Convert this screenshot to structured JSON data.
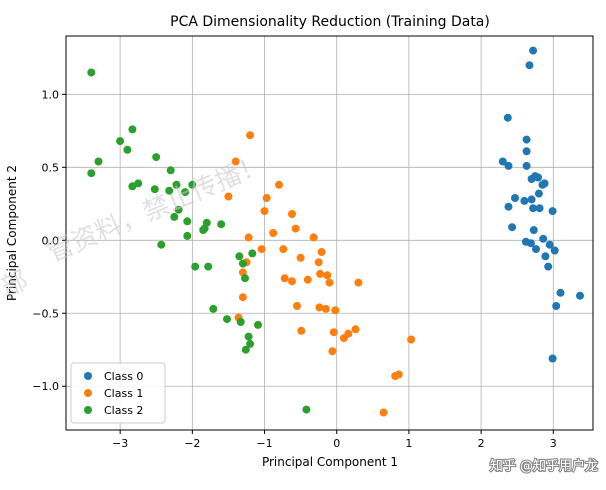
{
  "chart_data": {
    "type": "scatter",
    "title": "PCA Dimensionality Reduction (Training Data)",
    "xlabel": "Principal Component 1",
    "ylabel": "Principal Component 2",
    "xlim": [
      -3.75,
      3.55
    ],
    "ylim": [
      -1.3,
      1.4
    ],
    "xticks": [
      -3,
      -2,
      -1,
      0,
      1,
      2,
      3
    ],
    "yticks": [
      -1.0,
      -0.5,
      0.0,
      0.5,
      1.0
    ],
    "xtick_labels": [
      "−3",
      "−2",
      "−1",
      "0",
      "1",
      "2",
      "3"
    ],
    "ytick_labels": [
      "−1.0",
      "−0.5",
      "0.0",
      "0.5",
      "1.0"
    ],
    "grid": true,
    "legend_position": "lower-left",
    "series": [
      {
        "name": "Class 0",
        "color": "#1f77b4",
        "points": [
          [
            2.72,
            1.3
          ],
          [
            2.67,
            1.2
          ],
          [
            2.37,
            0.84
          ],
          [
            2.63,
            0.69
          ],
          [
            2.63,
            0.61
          ],
          [
            2.3,
            0.54
          ],
          [
            2.38,
            0.51
          ],
          [
            2.63,
            0.51
          ],
          [
            2.75,
            0.44
          ],
          [
            2.79,
            0.43
          ],
          [
            2.7,
            0.42
          ],
          [
            2.88,
            0.39
          ],
          [
            2.85,
            0.38
          ],
          [
            2.8,
            0.32
          ],
          [
            2.47,
            0.29
          ],
          [
            2.7,
            0.28
          ],
          [
            2.6,
            0.27
          ],
          [
            2.38,
            0.23
          ],
          [
            2.72,
            0.22
          ],
          [
            2.81,
            0.22
          ],
          [
            2.99,
            0.2
          ],
          [
            2.43,
            0.09
          ],
          [
            2.73,
            0.07
          ],
          [
            2.86,
            0.01
          ],
          [
            2.62,
            -0.01
          ],
          [
            2.69,
            -0.02
          ],
          [
            2.95,
            -0.03
          ],
          [
            2.76,
            -0.06
          ],
          [
            3.02,
            -0.07
          ],
          [
            2.89,
            -0.11
          ],
          [
            2.93,
            -0.18
          ],
          [
            3.1,
            -0.36
          ],
          [
            3.37,
            -0.38
          ],
          [
            3.04,
            -0.45
          ],
          [
            2.99,
            -0.81
          ]
        ]
      },
      {
        "name": "Class 1",
        "color": "#ff7f0e",
        "points": [
          [
            -1.2,
            0.72
          ],
          [
            -1.4,
            0.54
          ],
          [
            -0.8,
            0.38
          ],
          [
            -1.5,
            0.3
          ],
          [
            -0.97,
            0.29
          ],
          [
            -1.0,
            0.2
          ],
          [
            -0.62,
            0.18
          ],
          [
            -0.57,
            0.08
          ],
          [
            -0.88,
            0.05
          ],
          [
            -1.22,
            0.02
          ],
          [
            -0.32,
            0.02
          ],
          [
            -1.04,
            -0.06
          ],
          [
            -0.74,
            -0.06
          ],
          [
            -0.21,
            -0.08
          ],
          [
            -0.5,
            -0.12
          ],
          [
            -1.25,
            -0.15
          ],
          [
            -0.25,
            -0.15
          ],
          [
            -1.3,
            -0.22
          ],
          [
            -0.23,
            -0.23
          ],
          [
            -0.13,
            -0.24
          ],
          [
            -0.72,
            -0.26
          ],
          [
            -0.4,
            -0.27
          ],
          [
            -0.62,
            -0.28
          ],
          [
            -0.1,
            -0.29
          ],
          [
            0.3,
            -0.29
          ],
          [
            -1.3,
            -0.39
          ],
          [
            -0.55,
            -0.45
          ],
          [
            -0.24,
            -0.46
          ],
          [
            -0.15,
            -0.47
          ],
          [
            -0.02,
            -0.48
          ],
          [
            -1.36,
            -0.53
          ],
          [
            -0.49,
            -0.62
          ],
          [
            -0.04,
            -0.63
          ],
          [
            0.26,
            -0.61
          ],
          [
            0.16,
            -0.64
          ],
          [
            0.1,
            -0.67
          ],
          [
            1.03,
            -0.68
          ],
          [
            -0.06,
            -0.76
          ],
          [
            0.81,
            -0.93
          ],
          [
            0.86,
            -0.92
          ],
          [
            0.65,
            -1.18
          ]
        ]
      },
      {
        "name": "Class 2",
        "color": "#2ca02c",
        "points": [
          [
            -3.4,
            1.15
          ],
          [
            -2.83,
            0.76
          ],
          [
            -3.0,
            0.68
          ],
          [
            -2.9,
            0.62
          ],
          [
            -2.5,
            0.57
          ],
          [
            -3.3,
            0.54
          ],
          [
            -2.3,
            0.48
          ],
          [
            -3.4,
            0.46
          ],
          [
            -2.22,
            0.38
          ],
          [
            -2.75,
            0.39
          ],
          [
            -2.83,
            0.37
          ],
          [
            -2.52,
            0.35
          ],
          [
            -2.0,
            0.38
          ],
          [
            -2.32,
            0.34
          ],
          [
            -2.1,
            0.33
          ],
          [
            -2.19,
            0.21
          ],
          [
            -2.25,
            0.16
          ],
          [
            -2.07,
            0.13
          ],
          [
            -1.8,
            0.12
          ],
          [
            -1.6,
            0.11
          ],
          [
            -1.83,
            0.08
          ],
          [
            -1.85,
            0.07
          ],
          [
            -2.07,
            0.03
          ],
          [
            -2.43,
            -0.03
          ],
          [
            -1.35,
            -0.11
          ],
          [
            -1.17,
            -0.09
          ],
          [
            -1.3,
            -0.16
          ],
          [
            -1.96,
            -0.18
          ],
          [
            -1.78,
            -0.18
          ],
          [
            -1.27,
            -0.26
          ],
          [
            -1.71,
            -0.47
          ],
          [
            -1.52,
            -0.54
          ],
          [
            -1.33,
            -0.56
          ],
          [
            -1.09,
            -0.58
          ],
          [
            -1.22,
            -0.66
          ],
          [
            -1.2,
            -0.71
          ],
          [
            -1.26,
            -0.75
          ],
          [
            -0.42,
            -1.16
          ]
        ]
      }
    ]
  },
  "watermarks": {
    "diagonal": "管资料，禁止传播！",
    "left_fragment": "部",
    "corner": "知乎 @知乎用户龙"
  }
}
